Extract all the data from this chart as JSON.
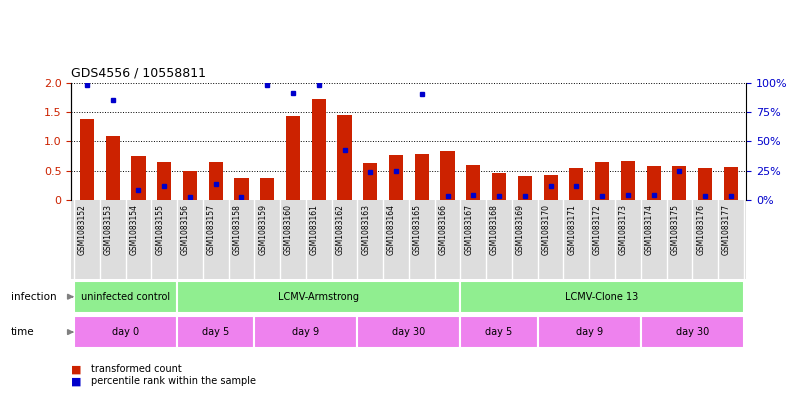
{
  "title": "GDS4556 / 10558811",
  "samples": [
    "GSM1083152",
    "GSM1083153",
    "GSM1083154",
    "GSM1083155",
    "GSM1083156",
    "GSM1083157",
    "GSM1083158",
    "GSM1083159",
    "GSM1083160",
    "GSM1083161",
    "GSM1083162",
    "GSM1083163",
    "GSM1083164",
    "GSM1083165",
    "GSM1083166",
    "GSM1083167",
    "GSM1083168",
    "GSM1083169",
    "GSM1083170",
    "GSM1083171",
    "GSM1083172",
    "GSM1083173",
    "GSM1083174",
    "GSM1083175",
    "GSM1083176",
    "GSM1083177"
  ],
  "red_values": [
    1.38,
    1.1,
    0.75,
    0.66,
    0.5,
    0.65,
    0.38,
    0.38,
    1.43,
    1.72,
    1.45,
    0.63,
    0.77,
    0.78,
    0.84,
    0.6,
    0.47,
    0.42,
    0.43,
    0.55,
    0.65,
    0.67,
    0.58,
    0.58,
    0.55,
    0.57
  ],
  "blue_values": [
    1.96,
    1.7,
    0.18,
    0.24,
    0.05,
    0.28,
    0.06,
    1.95,
    1.82,
    1.95,
    0.85,
    0.48,
    0.5,
    1.81,
    0.08,
    0.09,
    0.07,
    0.07,
    0.25,
    0.25,
    0.08,
    0.09,
    0.09,
    0.5,
    0.08,
    0.08
  ],
  "infection_groups": [
    {
      "label": "uninfected control",
      "start": 0,
      "end": 3,
      "color": "#90EE90"
    },
    {
      "label": "LCMV-Armstrong",
      "start": 4,
      "end": 14,
      "color": "#90EE90"
    },
    {
      "label": "LCMV-Clone 13",
      "start": 15,
      "end": 25,
      "color": "#90EE90"
    }
  ],
  "time_groups": [
    {
      "label": "day 0",
      "start": 0,
      "end": 3,
      "color": "#EE82EE"
    },
    {
      "label": "day 5",
      "start": 4,
      "end": 6,
      "color": "#EE82EE"
    },
    {
      "label": "day 9",
      "start": 7,
      "end": 10,
      "color": "#EE82EE"
    },
    {
      "label": "day 30",
      "start": 11,
      "end": 14,
      "color": "#EE82EE"
    },
    {
      "label": "day 5",
      "start": 15,
      "end": 17,
      "color": "#EE82EE"
    },
    {
      "label": "day 9",
      "start": 18,
      "end": 21,
      "color": "#EE82EE"
    },
    {
      "label": "day 30",
      "start": 22,
      "end": 25,
      "color": "#EE82EE"
    }
  ],
  "ylim_left": [
    0,
    2
  ],
  "ylim_right": [
    0,
    100
  ],
  "yticks_left": [
    0,
    0.5,
    1.0,
    1.5,
    2.0
  ],
  "yticks_right": [
    0,
    25,
    50,
    75,
    100
  ],
  "bar_color_red": "#CC2200",
  "bar_color_blue": "#0000CC",
  "legend_red": "transformed count",
  "legend_blue": "percentile rank within the sample",
  "plot_bg": "#FFFFFF",
  "xtick_bg": "#DDDDDD"
}
